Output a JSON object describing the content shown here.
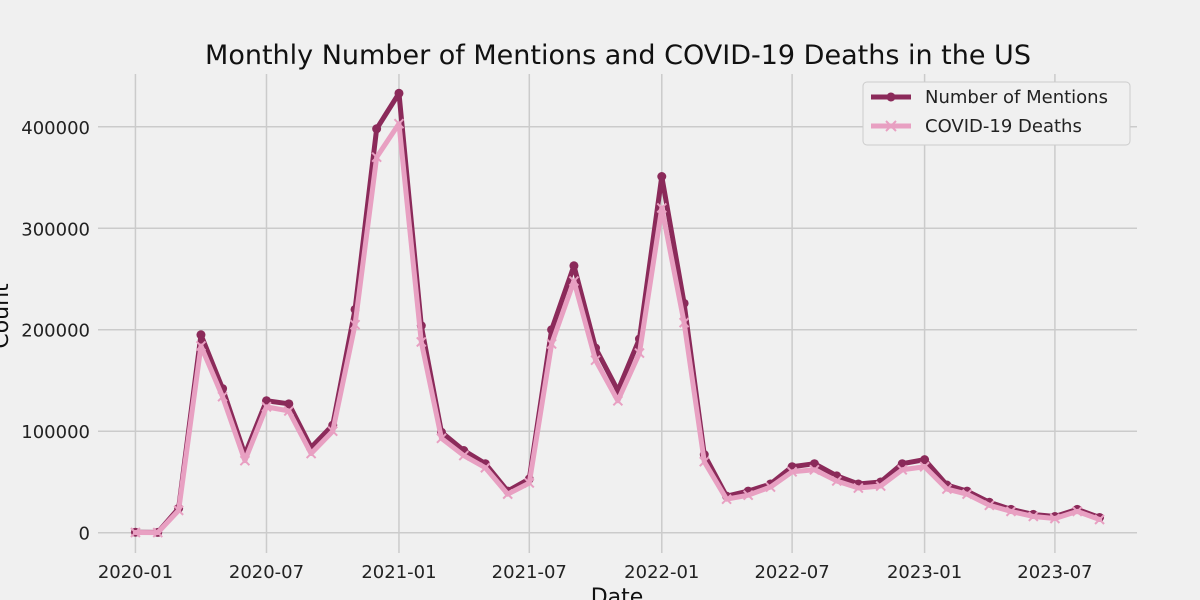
{
  "chart_data": {
    "type": "line",
    "title": "Monthly Number of Mentions and COVID-19 Deaths in the US",
    "xlabel": "Date",
    "ylabel": "Count",
    "x_tick_labels": [
      "2020-01",
      "2020-07",
      "2021-01",
      "2021-07",
      "2022-01",
      "2022-07",
      "2023-01",
      "2023-07"
    ],
    "y_tick_labels": [
      "0",
      "100000",
      "200000",
      "300000",
      "400000"
    ],
    "ylim": [
      -20000,
      452000
    ],
    "xlim": [
      "2019-11-10",
      "2023-10-23"
    ],
    "grid": true,
    "legend_position": "top-right",
    "x": [
      "2020-01",
      "2020-02",
      "2020-03",
      "2020-04",
      "2020-05",
      "2020-06",
      "2020-07",
      "2020-08",
      "2020-09",
      "2020-10",
      "2020-11",
      "2020-12",
      "2021-01",
      "2021-02",
      "2021-03",
      "2021-04",
      "2021-05",
      "2021-06",
      "2021-07",
      "2021-08",
      "2021-09",
      "2021-10",
      "2021-11",
      "2021-12",
      "2022-01",
      "2022-02",
      "2022-03",
      "2022-04",
      "2022-05",
      "2022-06",
      "2022-07",
      "2022-08",
      "2022-09",
      "2022-10",
      "2022-11",
      "2022-12",
      "2023-01",
      "2023-02",
      "2023-03",
      "2023-04",
      "2023-05",
      "2023-06",
      "2023-07",
      "2023-08",
      "2023-09"
    ],
    "series": [
      {
        "name": "Number of Mentions",
        "color": "#8b2a5a",
        "marker": "circle",
        "values": [
          500,
          300,
          24000,
          195000,
          142000,
          77000,
          130000,
          127000,
          84000,
          106000,
          220000,
          398000,
          433000,
          204000,
          99000,
          81000,
          68000,
          41000,
          53000,
          200000,
          263000,
          182000,
          140000,
          191000,
          351000,
          226000,
          77000,
          36000,
          41000,
          48000,
          65000,
          68000,
          56000,
          48000,
          50000,
          68000,
          72000,
          47000,
          41000,
          30000,
          23000,
          18000,
          16000,
          23000,
          15000
        ]
      },
      {
        "name": "COVID-19 Deaths",
        "color": "#e8a0c2",
        "marker": "x",
        "values": [
          200,
          100,
          22000,
          184000,
          134000,
          71000,
          124000,
          120000,
          78000,
          100000,
          205000,
          370000,
          403000,
          188000,
          93000,
          76000,
          64000,
          38000,
          49000,
          186000,
          248000,
          170000,
          130000,
          177000,
          320000,
          207000,
          70000,
          33000,
          37000,
          45000,
          60000,
          62000,
          51000,
          44000,
          46000,
          62000,
          65000,
          43000,
          38000,
          27000,
          21000,
          16000,
          14000,
          21000,
          13000
        ]
      }
    ]
  }
}
